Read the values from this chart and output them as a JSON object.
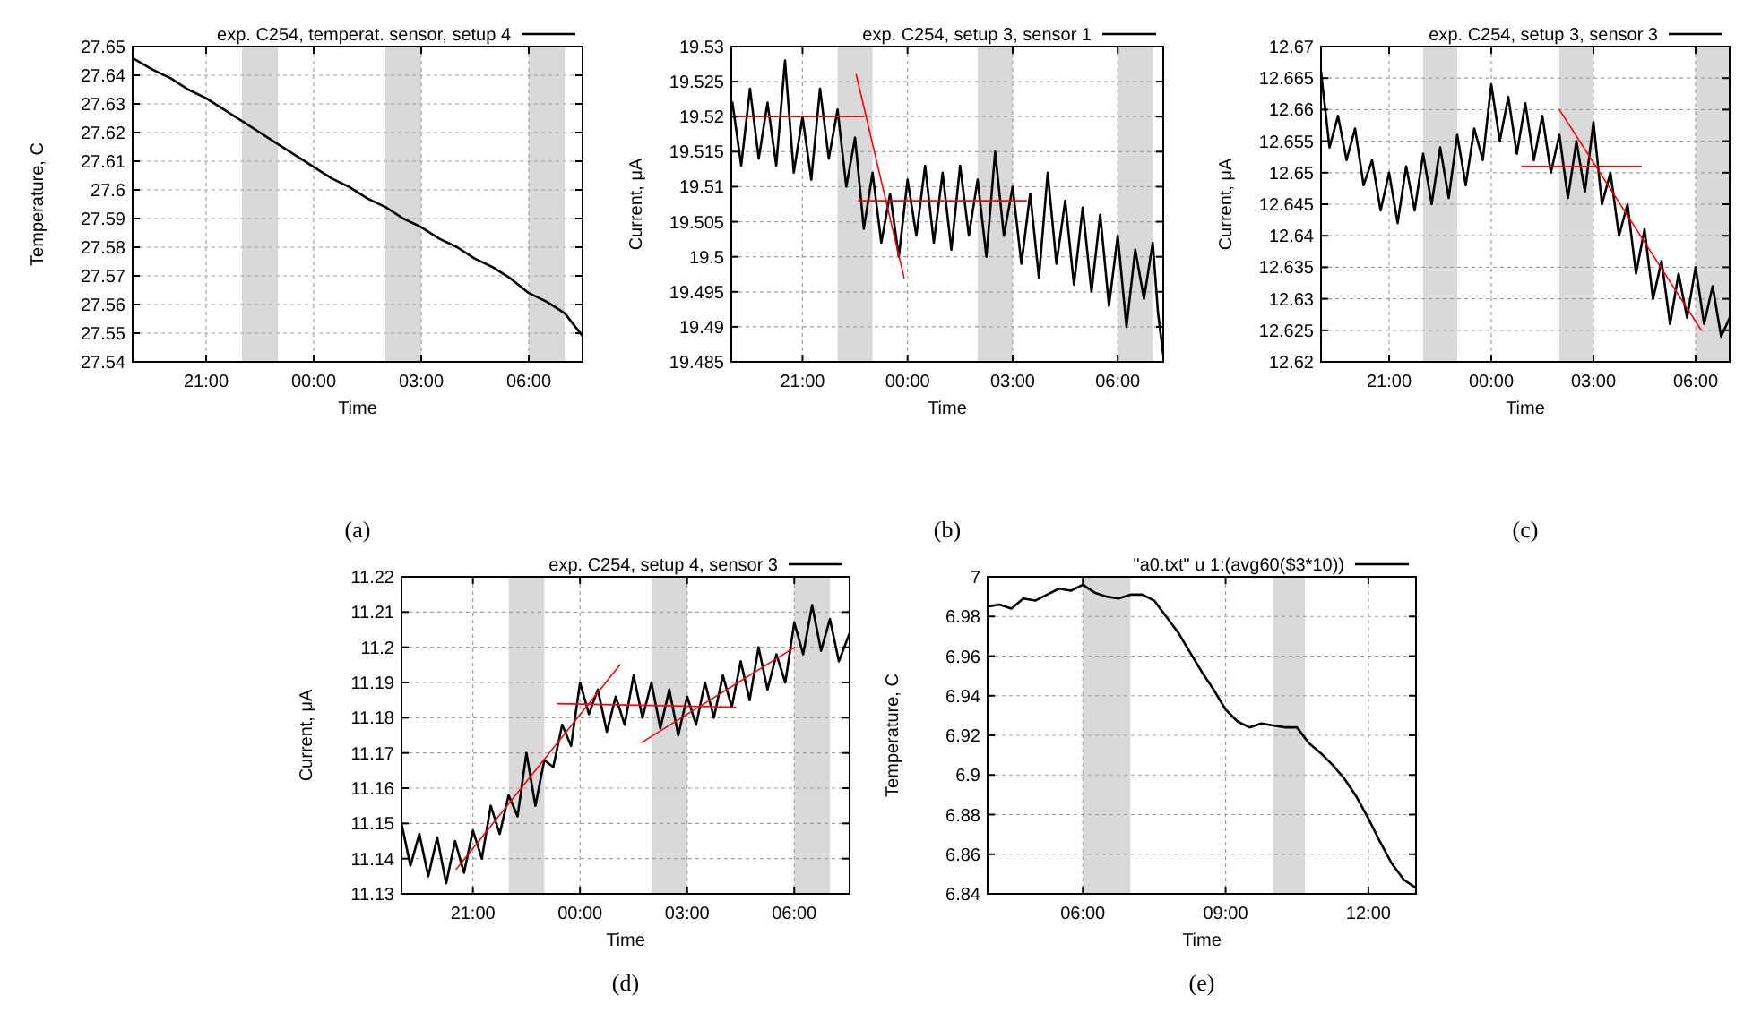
{
  "chart_data": [
    {
      "type": "line",
      "xlabel": "Time",
      "ylabel": "Temperature, C",
      "xlim": [
        "2000-01-01T18:57",
        "2000-01-02T07:30"
      ],
      "ylim": [
        27.54,
        27.65
      ],
      "xticks": [
        {
          "value": "2000-01-01T21:00",
          "label": "21:00"
        },
        {
          "value": "2000-01-02T00:00",
          "label": "00:00"
        },
        {
          "value": "2000-01-02T03:00",
          "label": "03:00"
        },
        {
          "value": "2000-01-02T06:00",
          "label": "06:00"
        }
      ],
      "yticks": [
        27.54,
        27.55,
        27.56,
        27.57,
        27.58,
        27.59,
        27.6,
        27.61,
        27.62,
        27.63,
        27.64,
        27.65
      ],
      "grid": true,
      "legend": "top right",
      "annotations": [
        "(a)"
      ],
      "bands": [
        {
          "axis": "x",
          "from": "2000-01-01T22:00",
          "to": "2000-01-01T23:00",
          "color": "#d9d9d9"
        },
        {
          "axis": "x",
          "from": "2000-01-02T02:00",
          "to": "2000-01-02T03:00",
          "color": "#d9d9d9"
        },
        {
          "axis": "x",
          "from": "2000-01-02T06:00",
          "to": "2000-01-02T07:00",
          "color": "#d9d9d9"
        }
      ],
      "series": [
        {
          "name": "exp. C254, temperat. sensor, setup 4",
          "color": "#000000",
          "x": [
            "2000-01-01T18:57",
            "2000-01-01T19:30",
            "2000-01-01T20:00",
            "2000-01-01T20:30",
            "2000-01-01T21:00",
            "2000-01-01T21:30",
            "2000-01-01T22:00",
            "2000-01-01T22:30",
            "2000-01-01T23:00",
            "2000-01-01T23:30",
            "2000-01-02T00:00",
            "2000-01-02T00:30",
            "2000-01-02T01:00",
            "2000-01-02T01:30",
            "2000-01-02T02:00",
            "2000-01-02T02:30",
            "2000-01-02T03:00",
            "2000-01-02T03:30",
            "2000-01-02T04:00",
            "2000-01-02T04:30",
            "2000-01-02T05:00",
            "2000-01-02T05:30",
            "2000-01-02T06:00",
            "2000-01-02T06:30",
            "2000-01-02T07:00",
            "2000-01-02T07:30"
          ],
          "values": [
            27.646,
            27.642,
            27.639,
            27.635,
            27.632,
            27.628,
            27.624,
            27.62,
            27.616,
            27.612,
            27.608,
            27.604,
            27.601,
            27.597,
            27.594,
            27.59,
            27.587,
            27.583,
            27.58,
            27.576,
            27.573,
            27.569,
            27.564,
            27.561,
            27.557,
            27.549
          ]
        }
      ]
    },
    {
      "type": "line",
      "xlabel": "Time",
      "ylabel": "Current, μA",
      "xlim": [
        "2000-01-01T18:58",
        "2000-01-02T07:18"
      ],
      "ylim": [
        19.485,
        19.53
      ],
      "xticks": [
        {
          "value": "2000-01-01T21:00",
          "label": "21:00"
        },
        {
          "value": "2000-01-02T00:00",
          "label": "00:00"
        },
        {
          "value": "2000-01-02T03:00",
          "label": "03:00"
        },
        {
          "value": "2000-01-02T06:00",
          "label": "06:00"
        }
      ],
      "yticks": [
        19.485,
        19.49,
        19.495,
        19.5,
        19.505,
        19.51,
        19.515,
        19.52,
        19.525,
        19.53
      ],
      "grid": true,
      "legend": "top right",
      "annotations": [
        "(b)"
      ],
      "bands": [
        {
          "axis": "x",
          "from": "2000-01-01T22:00",
          "to": "2000-01-01T23:00",
          "color": "#d9d9d9"
        },
        {
          "axis": "x",
          "from": "2000-01-02T02:00",
          "to": "2000-01-02T03:00",
          "color": "#d9d9d9"
        },
        {
          "axis": "x",
          "from": "2000-01-02T06:00",
          "to": "2000-01-02T07:00",
          "color": "#d9d9d9"
        }
      ],
      "series": [
        {
          "name": "exp. C254, setup 3, sensor 1",
          "color": "#000000",
          "x": [
            "2000-01-01T19:00",
            "2000-01-01T19:15",
            "2000-01-01T19:30",
            "2000-01-01T19:45",
            "2000-01-01T20:00",
            "2000-01-01T20:15",
            "2000-01-01T20:30",
            "2000-01-01T20:45",
            "2000-01-01T21:00",
            "2000-01-01T21:15",
            "2000-01-01T21:30",
            "2000-01-01T21:45",
            "2000-01-01T22:00",
            "2000-01-01T22:15",
            "2000-01-01T22:30",
            "2000-01-01T22:45",
            "2000-01-01T23:00",
            "2000-01-01T23:15",
            "2000-01-01T23:30",
            "2000-01-01T23:45",
            "2000-01-02T00:00",
            "2000-01-02T00:15",
            "2000-01-02T00:30",
            "2000-01-02T00:45",
            "2000-01-02T01:00",
            "2000-01-02T01:15",
            "2000-01-02T01:30",
            "2000-01-02T01:45",
            "2000-01-02T02:00",
            "2000-01-02T02:15",
            "2000-01-02T02:30",
            "2000-01-02T02:45",
            "2000-01-02T03:00",
            "2000-01-02T03:15",
            "2000-01-02T03:30",
            "2000-01-02T03:45",
            "2000-01-02T04:00",
            "2000-01-02T04:15",
            "2000-01-02T04:30",
            "2000-01-02T04:45",
            "2000-01-02T05:00",
            "2000-01-02T05:15",
            "2000-01-02T05:30",
            "2000-01-02T05:45",
            "2000-01-02T06:00",
            "2000-01-02T06:15",
            "2000-01-02T06:30",
            "2000-01-02T06:45",
            "2000-01-02T07:00",
            "2000-01-02T07:09",
            "2000-01-02T07:18"
          ],
          "values": [
            19.522,
            19.513,
            19.524,
            19.514,
            19.522,
            19.513,
            19.528,
            19.512,
            19.52,
            19.511,
            19.524,
            19.514,
            19.521,
            19.51,
            19.517,
            19.504,
            19.512,
            19.502,
            19.509,
            19.5,
            19.511,
            19.503,
            19.513,
            19.502,
            19.512,
            19.501,
            19.513,
            19.503,
            19.511,
            19.5,
            19.515,
            19.503,
            19.51,
            19.499,
            19.509,
            19.497,
            19.512,
            19.499,
            19.508,
            19.496,
            19.507,
            19.495,
            19.506,
            19.493,
            19.503,
            19.49,
            19.501,
            19.494,
            19.502,
            19.492,
            19.486
          ]
        },
        {
          "type": "line",
          "color": "#ff0000",
          "x": [
            "2000-01-01T18:58",
            "2000-01-01T22:45"
          ],
          "values": [
            19.52,
            19.52
          ]
        },
        {
          "type": "line",
          "color": "#ff0000",
          "x": [
            "2000-01-01T22:36",
            "2000-01-02T03:24"
          ],
          "values": [
            19.508,
            19.508
          ]
        },
        {
          "type": "line",
          "color": "#ff0000",
          "x": [
            "2000-01-01T22:32",
            "2000-01-01T23:54"
          ],
          "values": [
            19.526,
            19.497
          ]
        }
      ]
    },
    {
      "type": "line",
      "xlabel": "Time",
      "ylabel": "Current, μA",
      "xlim": [
        "2000-01-01T19:00",
        "2000-01-02T07:00"
      ],
      "ylim": [
        12.62,
        12.67
      ],
      "xticks": [
        {
          "value": "2000-01-01T21:00",
          "label": "21:00"
        },
        {
          "value": "2000-01-02T00:00",
          "label": "00:00"
        },
        {
          "value": "2000-01-02T03:00",
          "label": "03:00"
        },
        {
          "value": "2000-01-02T06:00",
          "label": "06:00"
        }
      ],
      "yticks": [
        12.62,
        12.625,
        12.63,
        12.635,
        12.64,
        12.645,
        12.65,
        12.655,
        12.66,
        12.665,
        12.67
      ],
      "grid": true,
      "legend": "top right",
      "annotations": [
        "(c)"
      ],
      "bands": [
        {
          "axis": "x",
          "from": "2000-01-01T22:00",
          "to": "2000-01-01T23:00",
          "color": "#d9d9d9"
        },
        {
          "axis": "x",
          "from": "2000-01-02T02:00",
          "to": "2000-01-02T03:00",
          "color": "#d9d9d9"
        },
        {
          "axis": "x",
          "from": "2000-01-02T06:00",
          "to": "2000-01-02T07:00",
          "color": "#d9d9d9"
        }
      ],
      "series": [
        {
          "name": "exp. C254, setup 3, sensor 3",
          "color": "#000000",
          "x": [
            "2000-01-01T19:00",
            "2000-01-01T19:15",
            "2000-01-01T19:30",
            "2000-01-01T19:45",
            "2000-01-01T20:00",
            "2000-01-01T20:15",
            "2000-01-01T20:30",
            "2000-01-01T20:45",
            "2000-01-01T21:00",
            "2000-01-01T21:15",
            "2000-01-01T21:30",
            "2000-01-01T21:45",
            "2000-01-01T22:00",
            "2000-01-01T22:15",
            "2000-01-01T22:30",
            "2000-01-01T22:45",
            "2000-01-01T23:00",
            "2000-01-01T23:15",
            "2000-01-01T23:30",
            "2000-01-01T23:45",
            "2000-01-02T00:00",
            "2000-01-02T00:15",
            "2000-01-02T00:30",
            "2000-01-02T00:45",
            "2000-01-02T01:00",
            "2000-01-02T01:15",
            "2000-01-02T01:30",
            "2000-01-02T01:45",
            "2000-01-02T02:00",
            "2000-01-02T02:15",
            "2000-01-02T02:30",
            "2000-01-02T02:45",
            "2000-01-02T03:00",
            "2000-01-02T03:15",
            "2000-01-02T03:30",
            "2000-01-02T03:45",
            "2000-01-02T04:00",
            "2000-01-02T04:15",
            "2000-01-02T04:30",
            "2000-01-02T04:45",
            "2000-01-02T05:00",
            "2000-01-02T05:15",
            "2000-01-02T05:30",
            "2000-01-02T05:45",
            "2000-01-02T06:00",
            "2000-01-02T06:15",
            "2000-01-02T06:30",
            "2000-01-02T06:45",
            "2000-01-02T07:00"
          ],
          "values": [
            12.666,
            12.654,
            12.659,
            12.652,
            12.657,
            12.648,
            12.652,
            12.644,
            12.65,
            12.642,
            12.651,
            12.644,
            12.653,
            12.645,
            12.654,
            12.646,
            12.656,
            12.648,
            12.657,
            12.652,
            12.664,
            12.655,
            12.662,
            12.653,
            12.661,
            12.652,
            12.659,
            12.65,
            12.656,
            12.646,
            12.655,
            12.647,
            12.658,
            12.645,
            12.65,
            12.64,
            12.645,
            12.634,
            12.641,
            12.63,
            12.636,
            12.626,
            12.634,
            12.627,
            12.635,
            12.626,
            12.632,
            12.624,
            12.627
          ]
        },
        {
          "type": "line",
          "color": "#ff0000",
          "x": [
            "2000-01-02T00:54",
            "2000-01-02T04:24"
          ],
          "values": [
            12.651,
            12.651
          ]
        },
        {
          "type": "line",
          "color": "#ff0000",
          "x": [
            "2000-01-02T02:00",
            "2000-01-02T06:10"
          ],
          "values": [
            12.66,
            12.625
          ]
        }
      ]
    },
    {
      "type": "line",
      "xlabel": "Time",
      "ylabel": "Current, μA",
      "xlim": [
        "2000-01-01T19:00",
        "2000-01-02T07:33"
      ],
      "ylim": [
        11.13,
        11.22
      ],
      "xticks": [
        {
          "value": "2000-01-01T21:00",
          "label": "21:00"
        },
        {
          "value": "2000-01-02T00:00",
          "label": "00:00"
        },
        {
          "value": "2000-01-02T03:00",
          "label": "03:00"
        },
        {
          "value": "2000-01-02T06:00",
          "label": "06:00"
        }
      ],
      "yticks": [
        11.13,
        11.14,
        11.15,
        11.16,
        11.17,
        11.18,
        11.19,
        11.2,
        11.21,
        11.22
      ],
      "grid": true,
      "legend": "top right",
      "annotations": [
        "(d)"
      ],
      "bands": [
        {
          "axis": "x",
          "from": "2000-01-01T22:00",
          "to": "2000-01-01T23:00",
          "color": "#d9d9d9"
        },
        {
          "axis": "x",
          "from": "2000-01-02T02:00",
          "to": "2000-01-02T03:00",
          "color": "#d9d9d9"
        },
        {
          "axis": "x",
          "from": "2000-01-02T06:00",
          "to": "2000-01-02T07:00",
          "color": "#d9d9d9"
        }
      ],
      "series": [
        {
          "name": "exp. C254, setup 4, sensor 3",
          "color": "#000000",
          "x": [
            "2000-01-01T19:00",
            "2000-01-01T19:15",
            "2000-01-01T19:30",
            "2000-01-01T19:45",
            "2000-01-01T20:00",
            "2000-01-01T20:15",
            "2000-01-01T20:30",
            "2000-01-01T20:45",
            "2000-01-01T21:00",
            "2000-01-01T21:15",
            "2000-01-01T21:30",
            "2000-01-01T21:45",
            "2000-01-01T22:00",
            "2000-01-01T22:15",
            "2000-01-01T22:30",
            "2000-01-01T22:45",
            "2000-01-01T23:00",
            "2000-01-01T23:15",
            "2000-01-01T23:30",
            "2000-01-01T23:45",
            "2000-01-02T00:00",
            "2000-01-02T00:15",
            "2000-01-02T00:30",
            "2000-01-02T00:45",
            "2000-01-02T01:00",
            "2000-01-02T01:15",
            "2000-01-02T01:30",
            "2000-01-02T01:45",
            "2000-01-02T02:00",
            "2000-01-02T02:15",
            "2000-01-02T02:30",
            "2000-01-02T02:45",
            "2000-01-02T03:00",
            "2000-01-02T03:15",
            "2000-01-02T03:30",
            "2000-01-02T03:45",
            "2000-01-02T04:00",
            "2000-01-02T04:15",
            "2000-01-02T04:30",
            "2000-01-02T04:45",
            "2000-01-02T05:00",
            "2000-01-02T05:15",
            "2000-01-02T05:30",
            "2000-01-02T05:45",
            "2000-01-02T06:00",
            "2000-01-02T06:15",
            "2000-01-02T06:30",
            "2000-01-02T06:45",
            "2000-01-02T07:00",
            "2000-01-02T07:15",
            "2000-01-02T07:33"
          ],
          "values": [
            11.15,
            11.138,
            11.147,
            11.135,
            11.146,
            11.133,
            11.145,
            11.136,
            11.148,
            11.14,
            11.155,
            11.147,
            11.158,
            11.152,
            11.17,
            11.155,
            11.168,
            11.166,
            11.178,
            11.172,
            11.19,
            11.181,
            11.188,
            11.176,
            11.186,
            11.178,
            11.192,
            11.18,
            11.19,
            11.177,
            11.188,
            11.175,
            11.186,
            11.178,
            11.19,
            11.18,
            11.192,
            11.183,
            11.196,
            11.185,
            11.2,
            11.188,
            11.198,
            11.19,
            11.207,
            11.198,
            11.212,
            11.199,
            11.208,
            11.196,
            11.204
          ]
        },
        {
          "type": "line",
          "color": "#ff0000",
          "x": [
            "2000-01-01T20:32",
            "2000-01-02T01:07"
          ],
          "values": [
            11.137,
            11.195
          ]
        },
        {
          "type": "line",
          "color": "#ff0000",
          "x": [
            "2000-01-01T23:22",
            "2000-01-02T04:21"
          ],
          "values": [
            11.184,
            11.183
          ]
        },
        {
          "type": "line",
          "color": "#ff0000",
          "x": [
            "2000-01-02T01:44",
            "2000-01-02T06:01"
          ],
          "values": [
            11.173,
            11.2
          ]
        }
      ]
    },
    {
      "type": "line",
      "xlabel": "Time",
      "ylabel": "Temperature, C",
      "xlim": [
        4,
        13
      ],
      "ylim": [
        6.84,
        7
      ],
      "xticks": [
        {
          "value": 6,
          "label": "06:00"
        },
        {
          "value": 9,
          "label": "09:00"
        },
        {
          "value": 12,
          "label": "12:00"
        }
      ],
      "yticks": [
        6.84,
        6.86,
        6.88,
        6.9,
        6.92,
        6.94,
        6.96,
        6.98,
        7
      ],
      "grid": true,
      "legend": "top right",
      "annotations": [
        "(e)"
      ],
      "bands": [
        {
          "axis": "x",
          "from": 6,
          "to": 7,
          "color": "#d9d9d9"
        },
        {
          "axis": "x",
          "from": 10,
          "to": 10.67,
          "color": "#d9d9d9"
        }
      ],
      "series": [
        {
          "name": "\"a0.txt\" u 1:(avg60($3*10))",
          "color": "#000000",
          "x": [
            4,
            4.25,
            4.5,
            4.75,
            5,
            5.25,
            5.5,
            5.75,
            6,
            6.25,
            6.5,
            6.75,
            7,
            7.25,
            7.5,
            7.75,
            8,
            8.25,
            8.5,
            8.75,
            9,
            9.25,
            9.5,
            9.75,
            10,
            10.25,
            10.5,
            10.75,
            11,
            11.25,
            11.5,
            11.75,
            12,
            12.25,
            12.5,
            12.75,
            13
          ],
          "values": [
            6.985,
            6.986,
            6.984,
            6.989,
            6.988,
            6.991,
            6.994,
            6.993,
            6.996,
            6.992,
            6.99,
            6.989,
            6.991,
            6.991,
            6.988,
            6.98,
            6.972,
            6.962,
            6.952,
            6.943,
            6.933,
            6.927,
            6.924,
            6.926,
            6.925,
            6.924,
            6.924,
            6.916,
            6.911,
            6.905,
            6.898,
            6.889,
            6.878,
            6.866,
            6.855,
            6.847,
            6.843
          ]
        }
      ]
    }
  ]
}
